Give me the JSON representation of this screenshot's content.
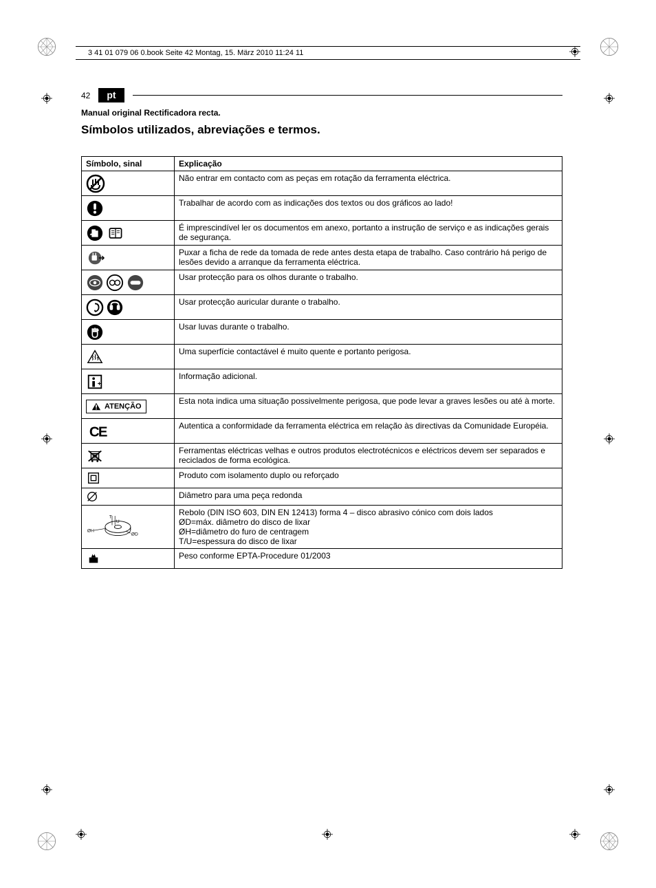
{
  "header": "3 41 01 079 06 0.book  Seite 42  Montag, 15. März 2010  11:24 11",
  "page_number": "42",
  "lang_code": "pt",
  "subtitle": "Manual original Rectificadora recta.",
  "section_title": "Símbolos utilizados, abreviações e termos.",
  "table": {
    "col_symbol": "Símbolo, sinal",
    "col_explain": "Explicação",
    "rows": [
      {
        "icon": "no-touch",
        "text": "Não entrar em contacto com as peças em rotação da ferramenta eléctrica."
      },
      {
        "icon": "observe",
        "text": "Trabalhar de acordo com as indicações dos textos ou dos gráficos ao lado!"
      },
      {
        "icon": "read-docs",
        "text": "É imprescindível ler os documentos em anexo, portanto a instrução de serviço e as indicações gerais de segurança."
      },
      {
        "icon": "unplug",
        "text": "Puxar a ficha de rede da tomada de rede antes desta etapa de trabalho. Caso contrário há perigo de lesões devido a arranque da ferramenta eléctrica."
      },
      {
        "icon": "eye-protect",
        "text": "Usar protecção para os olhos durante o trabalho."
      },
      {
        "icon": "ear-protect",
        "text": "Usar protecção auricular durante o trabalho."
      },
      {
        "icon": "gloves",
        "text": "Usar luvas durante o trabalho."
      },
      {
        "icon": "hot-surface",
        "text": "Uma superfície contactável é muito quente e portanto perigosa."
      },
      {
        "icon": "info",
        "text": "Informação adicional."
      },
      {
        "icon": "atencao",
        "text": "Esta nota indica uma situação possivelmente perigosa, que pode levar a graves lesões ou até à morte."
      },
      {
        "icon": "ce",
        "text": "Autentica a conformidade da ferramenta eléctrica em relação às directivas da Comunidade Européia."
      },
      {
        "icon": "weee",
        "text": "Ferramentas eléctricas velhas e outros produtos electrotécnicos e eléctricos devem ser separados e reciclados de forma ecológica."
      },
      {
        "icon": "double-insul",
        "text": "Produto com isolamento duplo ou reforçado"
      },
      {
        "icon": "diameter",
        "text": "Diâmetro para uma peça redonda"
      },
      {
        "icon": "grind-wheel",
        "text": "Rebolo (DIN ISO 603, DIN EN 12413) forma 4 – disco abrasivo cónico com dois lados\nØD=máx. diâmetro do disco de lixar\nØH=diâmetro do furo de centragem\nT/U=espessura do disco de lixar"
      },
      {
        "icon": "weight",
        "text": "Peso conforme EPTA-Procedure 01/2003"
      }
    ],
    "atencao_label": "ATENÇÃO",
    "grind_labels": {
      "T": "T",
      "U": "U",
      "OH": "ØH",
      "OD": "ØD"
    }
  }
}
